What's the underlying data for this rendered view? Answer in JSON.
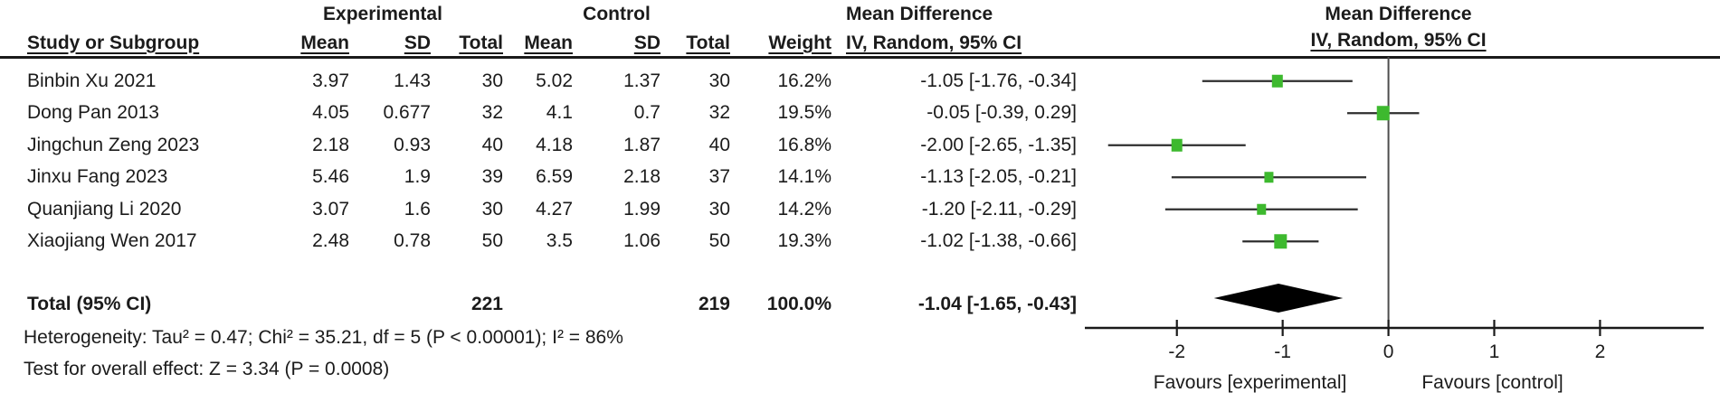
{
  "colors": {
    "marker_green": "#3DB92E",
    "ci_line": "#2e2e2e",
    "axis": "#1a1a1a",
    "zero_line": "#4d4d4d",
    "diamond": "#000000",
    "text": "#1b1b1b"
  },
  "header": {
    "group_experimental": "Experimental",
    "group_control": "Control",
    "md_col_title": "Mean Difference",
    "md_plot_title": "Mean Difference",
    "study": "Study or Subgroup",
    "exp_mean": "Mean",
    "exp_sd": "SD",
    "exp_total": "Total",
    "ctl_mean": "Mean",
    "ctl_sd": "SD",
    "ctl_total": "Total",
    "weight": "Weight",
    "ci_method": "IV, Random, 95% CI",
    "ci_method_plot": "IV, Random, 95% CI"
  },
  "rows": [
    {
      "study": "Binbin Xu 2021",
      "exp_mean": "3.97",
      "exp_sd": "1.43",
      "exp_total": "30",
      "ctl_mean": "5.02",
      "ctl_sd": "1.37",
      "ctl_total": "30",
      "weight": "16.2%",
      "ci": "-1.05 [-1.76, -0.34]"
    },
    {
      "study": "Dong Pan 2013",
      "exp_mean": "4.05",
      "exp_sd": "0.677",
      "exp_total": "32",
      "ctl_mean": "4.1",
      "ctl_sd": "0.7",
      "ctl_total": "32",
      "weight": "19.5%",
      "ci": "-0.05 [-0.39, 0.29]"
    },
    {
      "study": "Jingchun Zeng 2023",
      "exp_mean": "2.18",
      "exp_sd": "0.93",
      "exp_total": "40",
      "ctl_mean": "4.18",
      "ctl_sd": "1.87",
      "ctl_total": "40",
      "weight": "16.8%",
      "ci": "-2.00 [-2.65, -1.35]"
    },
    {
      "study": "Jinxu Fang 2023",
      "exp_mean": "5.46",
      "exp_sd": "1.9",
      "exp_total": "39",
      "ctl_mean": "6.59",
      "ctl_sd": "2.18",
      "ctl_total": "37",
      "weight": "14.1%",
      "ci": "-1.13 [-2.05, -0.21]"
    },
    {
      "study": "Quanjiang Li 2020",
      "exp_mean": "3.07",
      "exp_sd": "1.6",
      "exp_total": "30",
      "ctl_mean": "4.27",
      "ctl_sd": "1.99",
      "ctl_total": "30",
      "weight": "14.2%",
      "ci": "-1.20 [-2.11, -0.29]"
    },
    {
      "study": "Xiaojiang Wen 2017",
      "exp_mean": "2.48",
      "exp_sd": "0.78",
      "exp_total": "50",
      "ctl_mean": "3.5",
      "ctl_sd": "1.06",
      "ctl_total": "50",
      "weight": "19.3%",
      "ci": "-1.02 [-1.38, -0.66]"
    }
  ],
  "total_row": {
    "label": "Total (95% CI)",
    "exp_total": "221",
    "ctl_total": "219",
    "weight": "100.0%",
    "ci": "-1.04 [-1.65, -0.43]"
  },
  "footnotes": {
    "heterogeneity": "Heterogeneity: Tau² = 0.47; Chi² = 35.21, df = 5 (P < 0.00001); I² = 86%",
    "overall_effect": "Test for overall effect: Z = 3.34 (P = 0.0008)"
  },
  "chart_data": {
    "type": "scatter",
    "subtype": "forest-plot",
    "title": "Mean Difference — IV, Random, 95% CI",
    "effect_measure": "Mean Difference",
    "model": "IV, Random, 95% CI",
    "x_axis": {
      "min": -2.87,
      "max": 2.98,
      "ticks": [
        -2,
        -1,
        0,
        1,
        2
      ],
      "zero_line": true,
      "grid": false
    },
    "studies": [
      {
        "name": "Binbin Xu 2021",
        "md": -1.05,
        "lo": -1.76,
        "hi": -0.34,
        "weight_pct": 16.2
      },
      {
        "name": "Dong Pan 2013",
        "md": -0.05,
        "lo": -0.39,
        "hi": 0.29,
        "weight_pct": 19.5
      },
      {
        "name": "Jingchun Zeng 2023",
        "md": -2.0,
        "lo": -2.65,
        "hi": -1.35,
        "weight_pct": 16.8
      },
      {
        "name": "Jinxu Fang 2023",
        "md": -1.13,
        "lo": -2.05,
        "hi": -0.21,
        "weight_pct": 14.1
      },
      {
        "name": "Quanjiang Li 2020",
        "md": -1.2,
        "lo": -2.11,
        "hi": -0.29,
        "weight_pct": 14.2
      },
      {
        "name": "Xiaojiang Wen 2017",
        "md": -1.02,
        "lo": -1.38,
        "hi": -0.66,
        "weight_pct": 19.3
      }
    ],
    "summary": {
      "label": "Total (95% CI)",
      "md": -1.04,
      "lo": -1.65,
      "hi": -0.43,
      "weight_pct": 100.0
    },
    "favours_left": "Favours [experimental]",
    "favours_right": "Favours [control]"
  }
}
